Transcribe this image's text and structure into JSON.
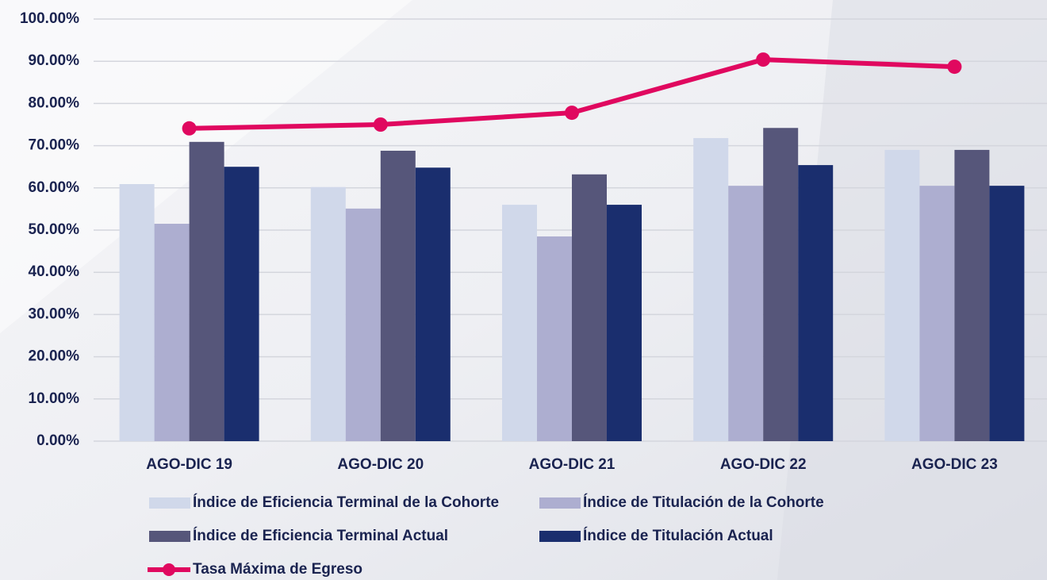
{
  "chart_data": {
    "type": "bar",
    "categories": [
      "AGO-DIC 19",
      "AGO-DIC 20",
      "AGO-DIC 21",
      "AGO-DIC 22",
      "AGO-DIC 23"
    ],
    "series": [
      {
        "name": "Índice de Eficiencia Terminal de la Cohorte",
        "color": "#d0d8ea",
        "values": [
          60.9,
          60.2,
          56.0,
          71.8,
          69.0
        ]
      },
      {
        "name": "Índice de Titulación de la Cohorte",
        "color": "#adaed0",
        "values": [
          51.5,
          55.1,
          48.5,
          60.5,
          60.5
        ]
      },
      {
        "name": "Índice de Eficiencia Terminal Actual",
        "color": "#56567a",
        "values": [
          70.9,
          68.8,
          63.2,
          74.2,
          69.0
        ]
      },
      {
        "name": "Índice de Titulación Actual",
        "color": "#1a2e6e",
        "values": [
          65.0,
          64.8,
          56.0,
          65.4,
          60.5
        ]
      },
      {
        "name": "Tasa Máxima de Egreso",
        "color": "#e0085f",
        "type": "line",
        "values": [
          74.1,
          75.0,
          77.8,
          90.4,
          88.7
        ]
      }
    ],
    "ylim": [
      0,
      100
    ],
    "yticks": [
      {
        "value": 0,
        "label": "0.00%"
      },
      {
        "value": 10,
        "label": "10.00%"
      },
      {
        "value": 20,
        "label": "20.00%"
      },
      {
        "value": 30,
        "label": "30.00%"
      },
      {
        "value": 40,
        "label": "40.00%"
      },
      {
        "value": 50,
        "label": "50.00%"
      },
      {
        "value": 60,
        "label": "60.00%"
      },
      {
        "value": 70,
        "label": "70.00%"
      },
      {
        "value": 80,
        "label": "80.00%"
      },
      {
        "value": 90,
        "label": "90.00%"
      },
      {
        "value": 100,
        "label": "100.00%"
      }
    ],
    "grid": true,
    "legend": "bottom"
  }
}
